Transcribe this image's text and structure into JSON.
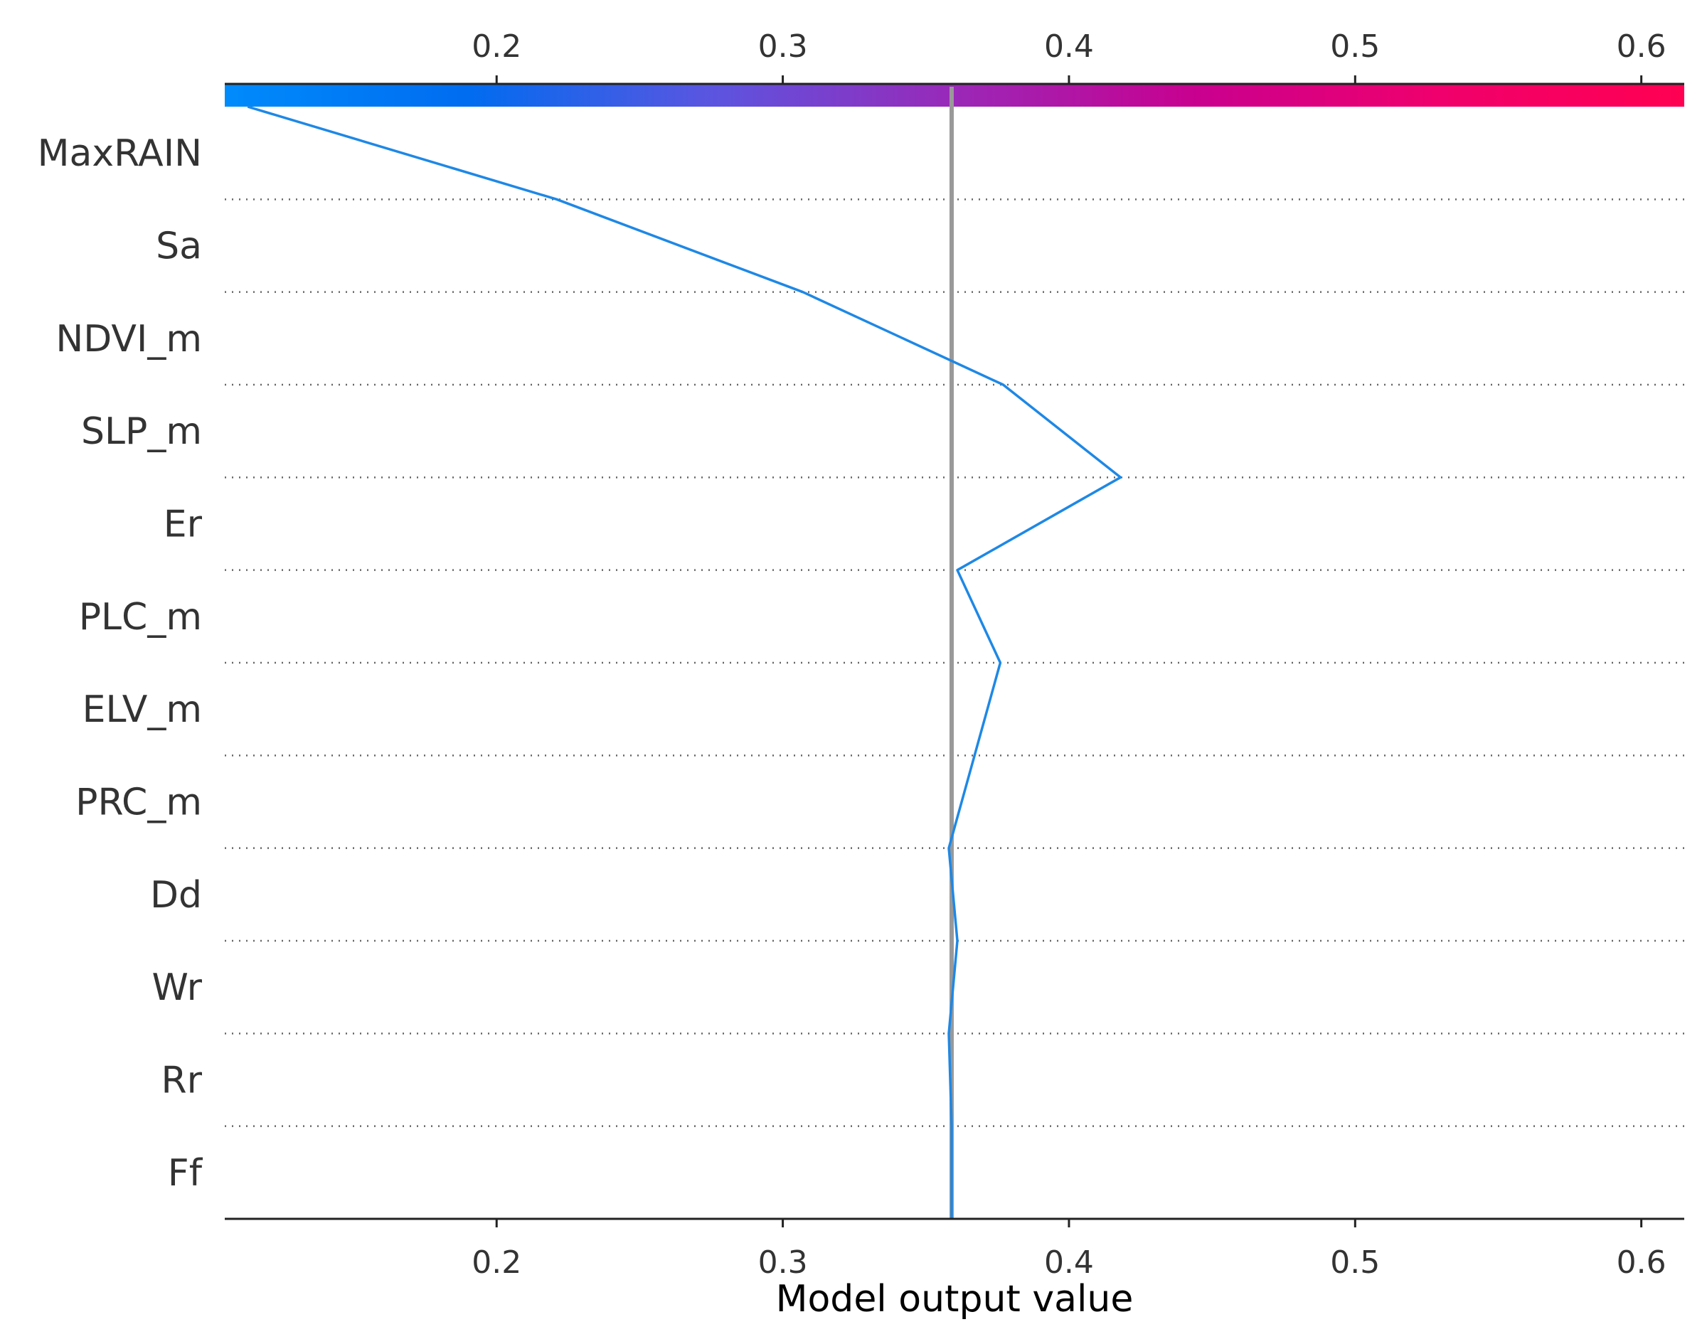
{
  "chart_data": {
    "type": "line",
    "chart_kind": "shap-decision-plot",
    "title": "",
    "xlabel": "Model output value",
    "ylabel": "",
    "xlim": [
      0.105,
      0.615
    ],
    "x_ticks": [
      0.2,
      0.3,
      0.4,
      0.5,
      0.6
    ],
    "x_tick_labels": [
      "0.2",
      "0.3",
      "0.4",
      "0.5",
      "0.6"
    ],
    "features": [
      "MaxRAIN",
      "Sa",
      "NDVI_m",
      "SLP_m",
      "Er",
      "PLC_m",
      "ELV_m",
      "PRC_m",
      "Dd",
      "Wr",
      "Rr",
      "Ff"
    ],
    "base_value": 0.359,
    "series": [
      {
        "color": "#1e88e5",
        "points": [
          {
            "after": "MaxRAIN",
            "x": 0.113
          },
          {
            "after": "Sa",
            "x": 0.221
          },
          {
            "after": "NDVI_m",
            "x": 0.307
          },
          {
            "after": "SLP_m",
            "x": 0.377
          },
          {
            "after": "Er",
            "x": 0.418
          },
          {
            "after": "PLC_m",
            "x": 0.361
          },
          {
            "after": "ELV_m",
            "x": 0.376
          },
          {
            "after": "PRC_m",
            "x": 0.367
          },
          {
            "after": "Dd",
            "x": 0.358
          },
          {
            "after": "Wr",
            "x": 0.361
          },
          {
            "after": "Rr",
            "x": 0.358
          },
          {
            "after": "Ff",
            "x": 0.359
          }
        ]
      }
    ],
    "colorbar": {
      "range": [
        0.105,
        0.615
      ],
      "colors": [
        "#008bfb",
        "#006cf0",
        "#5b55e0",
        "#9a28b8",
        "#c9008f",
        "#f0006c",
        "#ff0052"
      ]
    },
    "grid": "dotted horizontal separators"
  }
}
